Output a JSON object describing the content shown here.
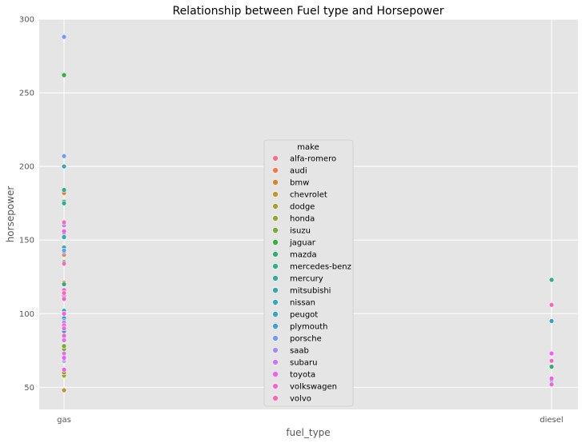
{
  "chart_data": {
    "type": "scatter",
    "title": "Relationship between Fuel type and Horsepower",
    "xlabel": "fuel_type",
    "ylabel": "horsepower",
    "categories": [
      "gas",
      "diesel"
    ],
    "ylim": [
      35,
      300
    ],
    "yticks": [
      50,
      100,
      150,
      200,
      250,
      300
    ],
    "grid": true,
    "legend": {
      "title": "make",
      "placement": "center",
      "entries": [
        {
          "name": "alfa-romero",
          "color": "#f77189"
        },
        {
          "name": "audi",
          "color": "#f7754f"
        },
        {
          "name": "bmw",
          "color": "#dd8431"
        },
        {
          "name": "chevrolet",
          "color": "#c39532"
        },
        {
          "name": "dodge",
          "color": "#ae9d31"
        },
        {
          "name": "honda",
          "color": "#97a431"
        },
        {
          "name": "isuzu",
          "color": "#77ab31"
        },
        {
          "name": "jaguar",
          "color": "#33b039"
        },
        {
          "name": "mazda",
          "color": "#35ad6d"
        },
        {
          "name": "mercedes-benz",
          "color": "#36ac8c"
        },
        {
          "name": "mercury",
          "color": "#37aa9d"
        },
        {
          "name": "mitsubishi",
          "color": "#38a8ab"
        },
        {
          "name": "nissan",
          "color": "#39a7b8"
        },
        {
          "name": "peugot",
          "color": "#3ba3c6"
        },
        {
          "name": "plymouth",
          "color": "#3d9fd7"
        },
        {
          "name": "porsche",
          "color": "#6e9bf4"
        },
        {
          "name": "saab",
          "color": "#a48cf4"
        },
        {
          "name": "subaru",
          "color": "#cc7af4"
        },
        {
          "name": "toyota",
          "color": "#f45cf2"
        },
        {
          "name": "volkswagen",
          "color": "#f565cc"
        },
        {
          "name": "volvo",
          "color": "#f66bad"
        }
      ]
    },
    "series": [
      {
        "make": "alfa-romero",
        "points": [
          [
            "gas",
            111
          ],
          [
            "gas",
            154
          ]
        ]
      },
      {
        "make": "audi",
        "points": [
          [
            "gas",
            102
          ],
          [
            "gas",
            115
          ],
          [
            "gas",
            110
          ],
          [
            "gas",
            140
          ],
          [
            "gas",
            160
          ]
        ]
      },
      {
        "make": "bmw",
        "points": [
          [
            "gas",
            101
          ],
          [
            "gas",
            121
          ],
          [
            "gas",
            182
          ]
        ]
      },
      {
        "make": "chevrolet",
        "points": [
          [
            "gas",
            48
          ],
          [
            "gas",
            70
          ]
        ]
      },
      {
        "make": "dodge",
        "points": [
          [
            "gas",
            68
          ],
          [
            "gas",
            102
          ],
          [
            "gas",
            88
          ]
        ]
      },
      {
        "make": "honda",
        "points": [
          [
            "gas",
            58
          ],
          [
            "gas",
            76
          ],
          [
            "gas",
            60
          ],
          [
            "gas",
            86
          ],
          [
            "gas",
            100
          ]
        ]
      },
      {
        "make": "isuzu",
        "points": [
          [
            "gas",
            78
          ],
          [
            "gas",
            90
          ]
        ]
      },
      {
        "make": "jaguar",
        "points": [
          [
            "gas",
            176
          ],
          [
            "gas",
            262
          ]
        ]
      },
      {
        "make": "mazda",
        "points": [
          [
            "gas",
            68
          ],
          [
            "gas",
            84
          ],
          [
            "gas",
            101
          ],
          [
            "gas",
            135
          ],
          [
            "gas",
            120
          ],
          [
            "diesel",
            64
          ]
        ]
      },
      {
        "make": "mercedes-benz",
        "points": [
          [
            "gas",
            155
          ],
          [
            "gas",
            184
          ],
          [
            "diesel",
            123
          ]
        ]
      },
      {
        "make": "mercury",
        "points": [
          [
            "gas",
            175
          ]
        ]
      },
      {
        "make": "mitsubishi",
        "points": [
          [
            "gas",
            88
          ],
          [
            "gas",
            102
          ],
          [
            "gas",
            116
          ],
          [
            "gas",
            145
          ]
        ]
      },
      {
        "make": "nissan",
        "points": [
          [
            "gas",
            69
          ],
          [
            "gas",
            97
          ],
          [
            "gas",
            152
          ],
          [
            "gas",
            200
          ],
          [
            "gas",
            160
          ],
          [
            "diesel",
            55
          ]
        ]
      },
      {
        "make": "peugot",
        "points": [
          [
            "gas",
            97
          ],
          [
            "gas",
            95
          ],
          [
            "gas",
            142
          ],
          [
            "diesel",
            95
          ]
        ]
      },
      {
        "make": "plymouth",
        "points": [
          [
            "gas",
            68
          ],
          [
            "gas",
            88
          ],
          [
            "gas",
            102
          ]
        ]
      },
      {
        "make": "porsche",
        "points": [
          [
            "gas",
            143
          ],
          [
            "gas",
            207
          ],
          [
            "gas",
            288
          ]
        ]
      },
      {
        "make": "saab",
        "points": [
          [
            "gas",
            110
          ],
          [
            "gas",
            160
          ]
        ]
      },
      {
        "make": "subaru",
        "points": [
          [
            "gas",
            69
          ],
          [
            "gas",
            73
          ],
          [
            "gas",
            82
          ],
          [
            "gas",
            94
          ],
          [
            "gas",
            111
          ]
        ]
      },
      {
        "make": "toyota",
        "points": [
          [
            "gas",
            62
          ],
          [
            "gas",
            70
          ],
          [
            "gas",
            92
          ],
          [
            "gas",
            112
          ],
          [
            "gas",
            116
          ],
          [
            "gas",
            156
          ],
          [
            "diesel",
            56
          ],
          [
            "diesel",
            73
          ]
        ]
      },
      {
        "make": "volkswagen",
        "points": [
          [
            "gas",
            85
          ],
          [
            "gas",
            90
          ],
          [
            "gas",
            100
          ],
          [
            "gas",
            110
          ],
          [
            "diesel",
            52
          ],
          [
            "diesel",
            68
          ]
        ]
      },
      {
        "make": "volvo",
        "points": [
          [
            "gas",
            114
          ],
          [
            "gas",
            134
          ],
          [
            "gas",
            162
          ],
          [
            "diesel",
            106
          ]
        ]
      }
    ]
  }
}
